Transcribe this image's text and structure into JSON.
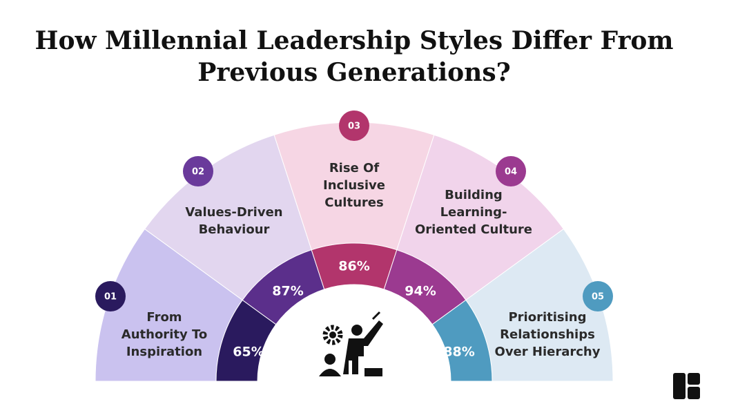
{
  "title_lines": [
    "How Millennial Leadership Styles Differ From",
    "Previous Generations?"
  ],
  "segments": [
    {
      "number": "01",
      "label_lines": [
        "From",
        "Authority To",
        "Inspiration"
      ],
      "percent": "65%"
    },
    {
      "number": "02",
      "label_lines": [
        "Values-Driven",
        "Behaviour"
      ],
      "percent": "87%"
    },
    {
      "number": "03",
      "label_lines": [
        "Rise Of",
        "Inclusive",
        "Cultures"
      ],
      "percent": "86%"
    },
    {
      "number": "04",
      "label_lines": [
        "Building",
        "Learning-",
        "Oriented Culture"
      ],
      "percent": "94%"
    },
    {
      "number": "05",
      "label_lines": [
        "Prioritising",
        "Relationships",
        "Over Hierarchy"
      ],
      "percent": "88%"
    }
  ]
}
